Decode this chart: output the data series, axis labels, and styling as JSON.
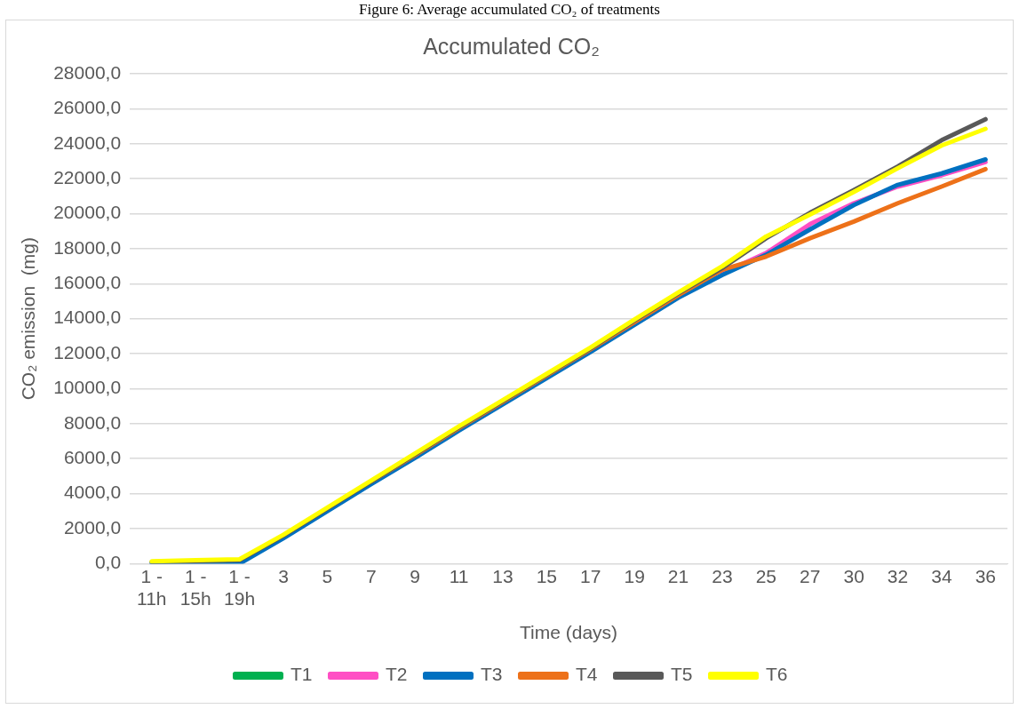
{
  "chart_data": {
    "type": "line",
    "title": "Accumulated CO₂",
    "xlabel": "Time (days)",
    "ylabel": "CO₂ emission  (mg)",
    "annotations": [
      "Figure 6: Average accumulated CO₂ of treatments"
    ],
    "categories": [
      "1 - 11h",
      "1 - 15h",
      "1 - 19h",
      "3",
      "5",
      "7",
      "9",
      "11",
      "13",
      "15",
      "17",
      "19",
      "21",
      "23",
      "25",
      "27",
      "30",
      "32",
      "34",
      "36"
    ],
    "series": [
      {
        "name": "T1",
        "color": "#00b050",
        "values": [
          null,
          null,
          null,
          null,
          null,
          null,
          null,
          null,
          null,
          null,
          null,
          null,
          null,
          null,
          null,
          null,
          null,
          null,
          null,
          null
        ]
      },
      {
        "name": "T2",
        "color": "#ff4fc4",
        "values": [
          null,
          null,
          null,
          null,
          null,
          null,
          null,
          null,
          null,
          null,
          null,
          null,
          null,
          16600,
          17750,
          19400,
          20600,
          21550,
          22200,
          22950
        ]
      },
      {
        "name": "T3",
        "color": "#0070c0",
        "values": [
          0,
          0,
          0,
          1450,
          3000,
          4550,
          6050,
          7600,
          9100,
          10600,
          12100,
          13650,
          15200,
          16500,
          17650,
          19100,
          20500,
          21650,
          22300,
          23100
        ]
      },
      {
        "name": "T4",
        "color": "#ed7119",
        "values": [
          null,
          null,
          null,
          null,
          null,
          4700,
          6200,
          7750,
          9250,
          10750,
          12250,
          13800,
          15350,
          16800,
          17550,
          18600,
          19550,
          20600,
          21550,
          22550
        ]
      },
      {
        "name": "T5",
        "color": "#595959",
        "values": [
          100,
          150,
          200,
          1600,
          3150,
          4700,
          6250,
          7800,
          9300,
          10800,
          12300,
          13900,
          15450,
          16900,
          18600,
          20050,
          21350,
          22700,
          24200,
          25400
        ]
      },
      {
        "name": "T6",
        "color": "#ffff00",
        "values": [
          130,
          200,
          250,
          1650,
          3200,
          4750,
          6300,
          7850,
          9350,
          10850,
          12350,
          13950,
          15500,
          17000,
          18700,
          19950,
          21250,
          22600,
          23900,
          24850
        ]
      }
    ],
    "ylim": [
      0,
      28000
    ],
    "yticks": [
      {
        "value": 0,
        "label": "0,0"
      },
      {
        "value": 2000,
        "label": "2000,0"
      },
      {
        "value": 4000,
        "label": "4000,0"
      },
      {
        "value": 6000,
        "label": "6000,0"
      },
      {
        "value": 8000,
        "label": "8000,0"
      },
      {
        "value": 10000,
        "label": "10000,0"
      },
      {
        "value": 12000,
        "label": "12000,0"
      },
      {
        "value": 14000,
        "label": "14000,0"
      },
      {
        "value": 16000,
        "label": "16000,0"
      },
      {
        "value": 18000,
        "label": "18000,0"
      },
      {
        "value": 20000,
        "label": "20000,0"
      },
      {
        "value": 22000,
        "label": "22000,0"
      },
      {
        "value": 24000,
        "label": "24000,0"
      },
      {
        "value": 26000,
        "label": "26000,0"
      },
      {
        "value": 28000,
        "label": "28000,0"
      }
    ],
    "grid": "y",
    "legend": "bottom",
    "marker": "none",
    "line_style": "solid"
  }
}
